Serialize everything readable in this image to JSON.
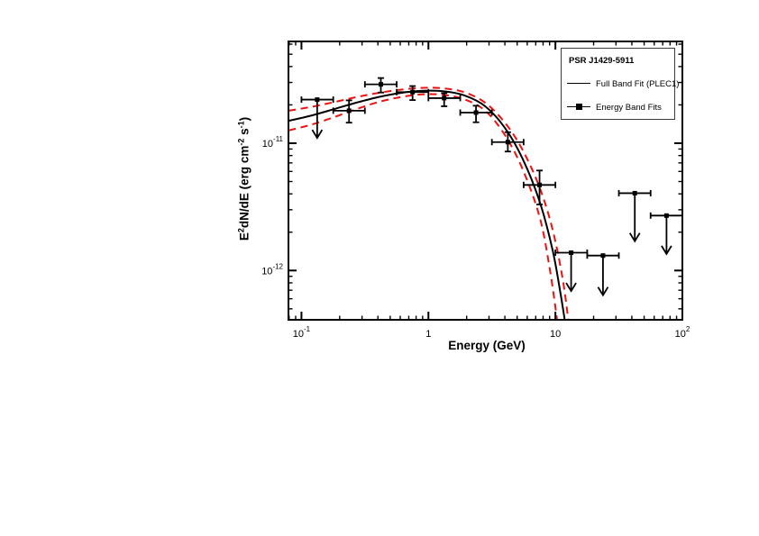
{
  "chart_data": {
    "type": "scatter",
    "title": "PSR J1429-5911",
    "xlabel": "Energy (GeV)",
    "ylabel_parts": [
      {
        "t": "E"
      },
      {
        "t": "2",
        "sup": true
      },
      {
        "t": "dN/dE (erg cm"
      },
      {
        "t": "-2",
        "sup": true
      },
      {
        "t": " s"
      },
      {
        "t": "-1",
        "sup": true
      },
      {
        "t": ")"
      }
    ],
    "x_scale": "log",
    "y_scale": "log",
    "xlim": [
      0.079,
      100
    ],
    "ylim": [
      4.1e-13,
      6.3e-11
    ],
    "grid": false,
    "legend_position": "top-right",
    "x_ticks": [
      {
        "value": 0.1,
        "base": "10",
        "exp": "-1"
      },
      {
        "value": 1,
        "base": "1",
        "exp": ""
      },
      {
        "value": 10,
        "base": "10",
        "exp": ""
      },
      {
        "value": 100,
        "base": "10",
        "exp": "2"
      }
    ],
    "y_ticks": [
      {
        "value": 1e-12,
        "base": "10",
        "exp": "-12"
      },
      {
        "value": 1e-11,
        "base": "10",
        "exp": "-11"
      }
    ],
    "colors": {
      "fit": "#000000",
      "band": "#ee1111",
      "data": "#000000"
    },
    "legend": {
      "title": "PSR J1429-5911",
      "entries": [
        {
          "label": "Full Band Fit (PLEC1)",
          "style": "line"
        },
        {
          "label": "Energy Band Fits",
          "style": "line-square"
        }
      ]
    },
    "series": [
      {
        "name": "Energy Band Fits",
        "type": "errorbar-points",
        "points": [
          {
            "e": 0.237,
            "e_lo": 0.178,
            "e_hi": 0.316,
            "f": 1.8e-11,
            "f_lo": 1.45e-11,
            "f_hi": 2.17e-11
          },
          {
            "e": 0.422,
            "e_lo": 0.316,
            "e_hi": 0.562,
            "f": 2.9e-11,
            "f_lo": 2.5e-11,
            "f_hi": 3.25e-11
          },
          {
            "e": 0.75,
            "e_lo": 0.562,
            "e_hi": 1.0,
            "f": 2.52e-11,
            "f_lo": 2.18e-11,
            "f_hi": 2.81e-11
          },
          {
            "e": 1.33,
            "e_lo": 1.0,
            "e_hi": 1.78,
            "f": 2.26e-11,
            "f_lo": 1.95e-11,
            "f_hi": 2.47e-11
          },
          {
            "e": 2.37,
            "e_lo": 1.78,
            "e_hi": 3.16,
            "f": 1.74e-11,
            "f_lo": 1.46e-11,
            "f_hi": 1.97e-11
          },
          {
            "e": 4.22,
            "e_lo": 3.16,
            "e_hi": 5.62,
            "f": 1.02e-11,
            "f_lo": 8.6e-12,
            "f_hi": 1.22e-11
          },
          {
            "e": 7.5,
            "e_lo": 5.62,
            "e_hi": 10.0,
            "f": 4.7e-12,
            "f_lo": 3.3e-12,
            "f_hi": 6.1e-12
          }
        ]
      },
      {
        "name": "Upper Limits",
        "type": "upper-limits",
        "points": [
          {
            "e": 0.133,
            "e_lo": 0.1,
            "e_hi": 0.178,
            "f": 2.2e-11,
            "arrow_to": 1.1e-11
          },
          {
            "e": 13.3,
            "e_lo": 10.0,
            "e_hi": 17.8,
            "f": 1.38e-12,
            "arrow_to": 6.9e-13
          },
          {
            "e": 23.7,
            "e_lo": 17.8,
            "e_hi": 31.6,
            "f": 1.31e-12,
            "arrow_to": 6.4e-13
          },
          {
            "e": 42.2,
            "e_lo": 31.6,
            "e_hi": 56.2,
            "f": 4.05e-12,
            "arrow_to": 1.7e-12
          },
          {
            "e": 75.0,
            "e_lo": 56.2,
            "e_hi": 100.0,
            "f": 2.7e-12,
            "arrow_to": 1.35e-12
          }
        ]
      },
      {
        "name": "Full Band Fit (PLEC1)",
        "type": "curve",
        "samples": [
          [
            0.0794,
            1.5e-11
          ],
          [
            0.12,
            1.65e-11
          ],
          [
            0.18,
            1.85e-11
          ],
          [
            0.27,
            2.08e-11
          ],
          [
            0.4,
            2.3e-11
          ],
          [
            0.6,
            2.48e-11
          ],
          [
            0.9,
            2.58e-11
          ],
          [
            1.3,
            2.56e-11
          ],
          [
            1.9,
            2.38e-11
          ],
          [
            2.8,
            1.95e-11
          ],
          [
            4.0,
            1.32e-11
          ],
          [
            5.5,
            7.6e-12
          ],
          [
            7.5,
            3.5e-12
          ],
          [
            9.5,
            1.45e-12
          ],
          [
            11.0,
            6.5e-13
          ],
          [
            12.3,
            3.2e-13
          ]
        ]
      },
      {
        "name": "Fit uncertainty upper bound",
        "type": "curve-dashed",
        "samples": [
          [
            0.0794,
            1.8e-11
          ],
          [
            0.12,
            1.93e-11
          ],
          [
            0.18,
            2.1e-11
          ],
          [
            0.27,
            2.3e-11
          ],
          [
            0.4,
            2.48e-11
          ],
          [
            0.6,
            2.63e-11
          ],
          [
            0.9,
            2.72e-11
          ],
          [
            1.3,
            2.7e-11
          ],
          [
            1.9,
            2.52e-11
          ],
          [
            2.8,
            2.08e-11
          ],
          [
            4.0,
            1.45e-11
          ],
          [
            5.5,
            8.9e-12
          ],
          [
            7.5,
            4.5e-12
          ],
          [
            9.5,
            2.1e-12
          ],
          [
            11.5,
            8.2e-13
          ],
          [
            13.0,
            3.2e-13
          ]
        ]
      },
      {
        "name": "Fit uncertainty lower bound",
        "type": "curve-dashed",
        "samples": [
          [
            0.0794,
            1.26e-11
          ],
          [
            0.12,
            1.4e-11
          ],
          [
            0.18,
            1.6e-11
          ],
          [
            0.27,
            1.85e-11
          ],
          [
            0.4,
            2.1e-11
          ],
          [
            0.6,
            2.3e-11
          ],
          [
            0.9,
            2.42e-11
          ],
          [
            1.3,
            2.4e-11
          ],
          [
            1.9,
            2.22e-11
          ],
          [
            2.8,
            1.8e-11
          ],
          [
            4.0,
            1.16e-11
          ],
          [
            5.5,
            6.3e-12
          ],
          [
            7.5,
            2.65e-12
          ],
          [
            9.0,
            1.05e-12
          ],
          [
            10.3,
            4.1e-13
          ],
          [
            11.0,
            2.2e-13
          ]
        ]
      }
    ]
  }
}
